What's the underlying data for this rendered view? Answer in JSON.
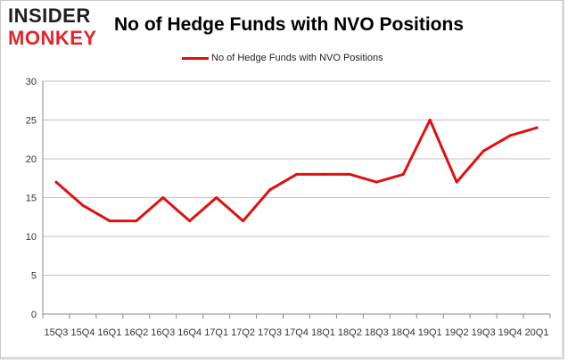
{
  "logo": {
    "line1": "INSIDER",
    "line2": "MONKEY"
  },
  "colors": {
    "series": "#e01010",
    "grid": "#c0c0c0",
    "axis": "#888888",
    "logo_red": "#e0262b"
  },
  "chart_data": {
    "type": "line",
    "title": "No of Hedge Funds with NVO Positions",
    "xlabel": "",
    "ylabel": "",
    "categories": [
      "15Q3",
      "15Q4",
      "16Q1",
      "16Q2",
      "16Q3",
      "16Q4",
      "17Q1",
      "17Q2",
      "17Q3",
      "17Q4",
      "18Q1",
      "18Q2",
      "18Q3",
      "18Q4",
      "19Q1",
      "19Q2",
      "19Q3",
      "19Q4",
      "20Q1"
    ],
    "series": [
      {
        "name": "No of Hedge Funds with NVO Positions",
        "values": [
          17,
          14,
          12,
          12,
          15,
          12,
          15,
          12,
          16,
          18,
          18,
          18,
          17,
          18,
          25,
          17,
          21,
          23,
          24
        ]
      }
    ],
    "ylim": [
      0,
      30
    ],
    "yticks": [
      0,
      5,
      10,
      15,
      20,
      25,
      30
    ],
    "grid": true,
    "legend_position": "top-center"
  }
}
